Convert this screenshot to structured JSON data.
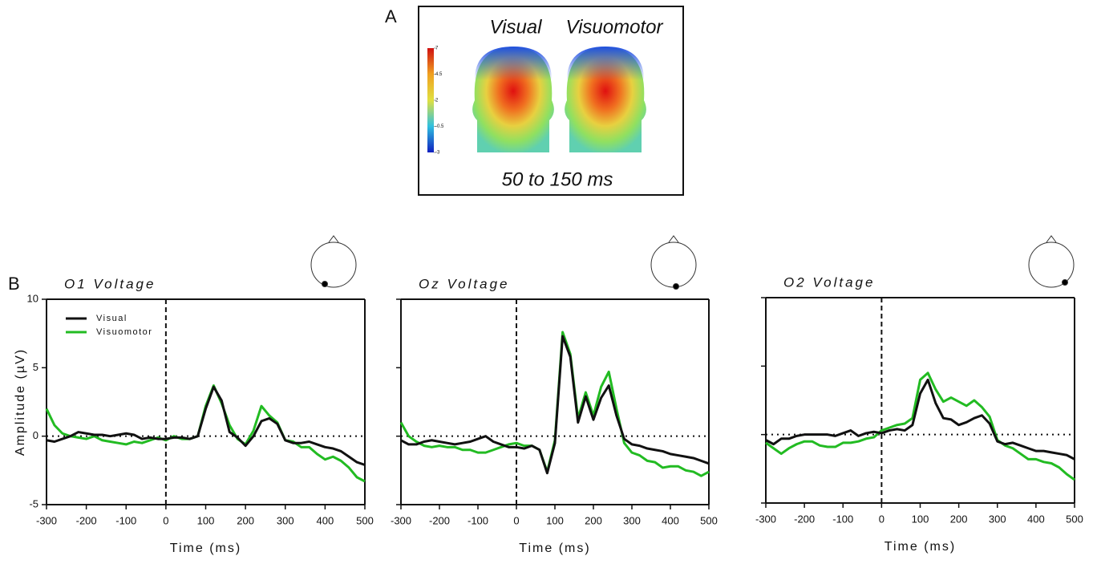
{
  "panel_labels": [
    "A",
    "B"
  ],
  "topography": {
    "labels": [
      "Visual",
      "Visuomotor"
    ],
    "caption": "50 to 150 ms",
    "colorbar_ticks": [
      7,
      4.5,
      2,
      -0.5,
      -3
    ],
    "clim": [
      -3,
      7
    ]
  },
  "chart_data": [
    {
      "type": "line",
      "title": "O1 Voltage",
      "x_label": "Time (ms)",
      "y_label": "Amplitude (µV)",
      "x": [
        -300,
        -280,
        -260,
        -240,
        -220,
        -200,
        -180,
        -160,
        -140,
        -120,
        -100,
        -80,
        -60,
        -40,
        -20,
        0,
        20,
        40,
        60,
        80,
        100,
        120,
        140,
        160,
        180,
        200,
        220,
        240,
        260,
        280,
        300,
        320,
        340,
        360,
        380,
        400,
        420,
        440,
        460,
        480,
        500
      ],
      "series": [
        {
          "name": "Visual",
          "color": "#111111",
          "values": [
            -0.3,
            -0.4,
            -0.2,
            0,
            0.3,
            0.2,
            0.1,
            0.1,
            0,
            0.1,
            0.2,
            0.1,
            -0.2,
            -0.1,
            -0.2,
            -0.2,
            -0.1,
            -0.1,
            -0.2,
            0,
            2,
            3.6,
            2.6,
            0.3,
            -0.1,
            -0.7,
            0,
            1.1,
            1.3,
            0.9,
            -0.3,
            -0.5,
            -0.5,
            -0.4,
            -0.6,
            -0.8,
            -0.9,
            -1.1,
            -1.5,
            -1.9,
            -2.1
          ]
        },
        {
          "name": "Visuomotor",
          "color": "#22bb22",
          "values": [
            2,
            0.8,
            0.2,
            0,
            -0.1,
            -0.2,
            0,
            -0.3,
            -0.4,
            -0.5,
            -0.6,
            -0.4,
            -0.5,
            -0.3,
            -0.1,
            -0.3,
            0,
            -0.2,
            -0.2,
            0,
            2.2,
            3.7,
            2.4,
            0.8,
            -0.2,
            -0.6,
            0.4,
            2.2,
            1.5,
            1,
            -0.3,
            -0.4,
            -0.8,
            -0.8,
            -1.3,
            -1.7,
            -1.5,
            -1.8,
            -2.3,
            -3,
            -3.3
          ]
        }
      ],
      "xlim": [
        -300,
        500
      ],
      "xticks": [
        -300,
        -200,
        -100,
        0,
        100,
        200,
        300,
        400,
        500
      ],
      "ylim": [
        -5,
        10
      ],
      "yticks": [
        -5,
        0,
        5,
        10
      ],
      "ytick_labels": true,
      "reference_lines": {
        "x": 0,
        "y": 0
      },
      "legend": "upper left"
    },
    {
      "type": "line",
      "title": "Oz Voltage",
      "x_label": "Time (ms)",
      "x": [
        -300,
        -280,
        -260,
        -240,
        -220,
        -200,
        -180,
        -160,
        -140,
        -120,
        -100,
        -80,
        -60,
        -40,
        -20,
        0,
        20,
        40,
        60,
        80,
        100,
        120,
        140,
        160,
        180,
        200,
        220,
        240,
        260,
        280,
        300,
        320,
        340,
        360,
        380,
        400,
        420,
        440,
        460,
        480,
        500
      ],
      "series": [
        {
          "name": "Visual",
          "color": "#111111",
          "values": [
            -0.3,
            -0.6,
            -0.6,
            -0.4,
            -0.3,
            -0.4,
            -0.5,
            -0.6,
            -0.5,
            -0.4,
            -0.2,
            0,
            -0.4,
            -0.6,
            -0.8,
            -0.8,
            -0.9,
            -0.7,
            -1,
            -2.7,
            -0.5,
            7.3,
            5.8,
            1,
            2.9,
            1.2,
            2.8,
            3.7,
            1.5,
            -0.2,
            -0.6,
            -0.7,
            -0.9,
            -1,
            -1.1,
            -1.3,
            -1.4,
            -1.5,
            -1.6,
            -1.8,
            -2
          ]
        },
        {
          "name": "Visuomotor",
          "color": "#22bb22",
          "values": [
            1,
            0,
            -0.4,
            -0.7,
            -0.8,
            -0.7,
            -0.8,
            -0.8,
            -1,
            -1,
            -1.2,
            -1.2,
            -1,
            -0.8,
            -0.6,
            -0.5,
            -0.7,
            -0.7,
            -1,
            -2.6,
            -0.3,
            7.6,
            6,
            1.3,
            3.2,
            1.5,
            3.6,
            4.7,
            2,
            -0.5,
            -1.2,
            -1.4,
            -1.8,
            -1.9,
            -2.3,
            -2.2,
            -2.2,
            -2.5,
            -2.6,
            -2.9,
            -2.6
          ]
        }
      ],
      "xlim": [
        -300,
        500
      ],
      "xticks": [
        -300,
        -200,
        -100,
        0,
        100,
        200,
        300,
        400,
        500
      ],
      "ylim": [
        -5,
        10
      ],
      "yticks": [
        -5,
        0,
        5,
        10
      ],
      "ytick_labels": false,
      "reference_lines": {
        "x": 0,
        "y": 0
      }
    },
    {
      "type": "line",
      "title": "O2 Voltage",
      "x_label": "Time (ms)",
      "x": [
        -300,
        -280,
        -260,
        -240,
        -220,
        -200,
        -180,
        -160,
        -140,
        -120,
        -100,
        -80,
        -60,
        -40,
        -20,
        0,
        20,
        40,
        60,
        80,
        100,
        120,
        140,
        160,
        180,
        200,
        220,
        240,
        260,
        280,
        300,
        320,
        340,
        360,
        380,
        400,
        420,
        440,
        460,
        480,
        500
      ],
      "series": [
        {
          "name": "Visual",
          "color": "#111111",
          "values": [
            -0.4,
            -0.7,
            -0.3,
            -0.3,
            -0.1,
            0,
            0,
            0,
            0,
            -0.1,
            0.1,
            0.3,
            -0.1,
            0.1,
            0.2,
            0.1,
            0.3,
            0.4,
            0.3,
            0.7,
            3,
            4,
            2.3,
            1.2,
            1.1,
            0.7,
            0.9,
            1.2,
            1.4,
            0.8,
            -0.5,
            -0.7,
            -0.6,
            -0.8,
            -1,
            -1.2,
            -1.2,
            -1.3,
            -1.4,
            -1.5,
            -1.8
          ]
        },
        {
          "name": "Visuomotor",
          "color": "#22bb22",
          "values": [
            -0.6,
            -1,
            -1.4,
            -1,
            -0.7,
            -0.5,
            -0.5,
            -0.8,
            -0.9,
            -0.9,
            -0.6,
            -0.6,
            -0.5,
            -0.3,
            -0.2,
            0.3,
            0.5,
            0.7,
            0.8,
            1.2,
            4,
            4.5,
            3.3,
            2.4,
            2.7,
            2.4,
            2.1,
            2.5,
            2,
            1.3,
            -0.4,
            -0.8,
            -1,
            -1.4,
            -1.8,
            -1.8,
            -2,
            -2.1,
            -2.4,
            -2.9,
            -3.3
          ]
        }
      ],
      "xlim": [
        -300,
        500
      ],
      "xticks": [
        -300,
        -200,
        -100,
        0,
        100,
        200,
        300,
        400,
        500
      ],
      "ylim": [
        -5,
        10
      ],
      "yticks": [
        -5,
        0,
        5,
        10
      ],
      "ytick_labels": false,
      "reference_lines": {
        "x": 0,
        "y": 0
      }
    }
  ]
}
